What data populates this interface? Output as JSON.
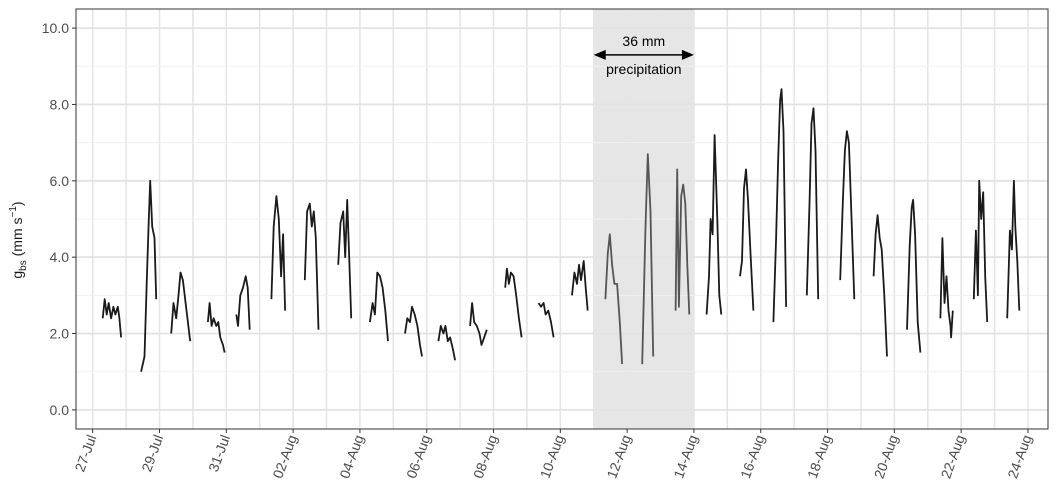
{
  "chart_data": {
    "type": "line",
    "title": "",
    "xlabel": "",
    "ylabel": "g_bs (mm s⁻¹)",
    "ylabel_parts": {
      "symbol": "g",
      "subscript": "bs",
      "unit": "(mm s",
      "exponent": "−1",
      "close": ")"
    },
    "x_unit": "day index from 27-Jul",
    "xlim": [
      -0.5,
      28.6
    ],
    "ylim": [
      -0.5,
      10.5
    ],
    "grid": true,
    "x_ticks": [
      {
        "pos": 0,
        "label": "27-Jul"
      },
      {
        "pos": 2,
        "label": "29-Jul"
      },
      {
        "pos": 4,
        "label": "31-Jul"
      },
      {
        "pos": 6,
        "label": "02-Aug"
      },
      {
        "pos": 8,
        "label": "04-Aug"
      },
      {
        "pos": 10,
        "label": "06-Aug"
      },
      {
        "pos": 12,
        "label": "08-Aug"
      },
      {
        "pos": 14,
        "label": "10-Aug"
      },
      {
        "pos": 16,
        "label": "12-Aug"
      },
      {
        "pos": 18,
        "label": "14-Aug"
      },
      {
        "pos": 20,
        "label": "16-Aug"
      },
      {
        "pos": 22,
        "label": "18-Aug"
      },
      {
        "pos": 24,
        "label": "20-Aug"
      },
      {
        "pos": 26,
        "label": "22-Aug"
      },
      {
        "pos": 28,
        "label": "24-Aug"
      }
    ],
    "y_ticks": [
      {
        "value": 0,
        "label": "0.0"
      },
      {
        "value": 2,
        "label": "2.0"
      },
      {
        "value": 4,
        "label": "4.0"
      },
      {
        "value": 6,
        "label": "6.0"
      },
      {
        "value": 8,
        "label": "8.0"
      },
      {
        "value": 10,
        "label": "10.0"
      }
    ],
    "shaded_region": {
      "x": [
        15.0,
        18.0
      ],
      "color": "#e6e6e6"
    },
    "annotation": {
      "line1": "36 mm",
      "line2": "precipitation",
      "arrow_x": [
        15.0,
        18.0
      ],
      "y": 9.3
    },
    "series": [
      {
        "color": "#1a1a1a",
        "points": [
          [
            0.3,
            2.4
          ],
          [
            0.36,
            2.9
          ],
          [
            0.42,
            2.5
          ],
          [
            0.48,
            2.8
          ],
          [
            0.55,
            2.4
          ],
          [
            0.62,
            2.7
          ],
          [
            0.68,
            2.5
          ],
          [
            0.75,
            2.7
          ],
          [
            0.8,
            2.4
          ],
          [
            0.85,
            1.9
          ]
        ]
      },
      {
        "color": "#1a1a1a",
        "points": [
          [
            1.45,
            1.0
          ],
          [
            1.55,
            1.4
          ],
          [
            1.62,
            3.4
          ],
          [
            1.68,
            5.0
          ],
          [
            1.72,
            6.0
          ],
          [
            1.78,
            4.8
          ],
          [
            1.85,
            4.5
          ],
          [
            1.9,
            2.9
          ]
        ]
      },
      {
        "color": "#1a1a1a",
        "points": [
          [
            2.35,
            2.0
          ],
          [
            2.42,
            2.8
          ],
          [
            2.5,
            2.4
          ],
          [
            2.57,
            3.0
          ],
          [
            2.63,
            3.6
          ],
          [
            2.7,
            3.4
          ],
          [
            2.78,
            2.8
          ],
          [
            2.85,
            2.3
          ],
          [
            2.92,
            1.8
          ]
        ]
      },
      {
        "color": "#1a1a1a",
        "points": [
          [
            3.45,
            2.3
          ],
          [
            3.5,
            2.8
          ],
          [
            3.56,
            2.2
          ],
          [
            3.62,
            2.4
          ],
          [
            3.7,
            2.2
          ],
          [
            3.76,
            2.3
          ],
          [
            3.82,
            1.9
          ],
          [
            3.9,
            1.7
          ],
          [
            3.95,
            1.5
          ]
        ]
      },
      {
        "color": "#1a1a1a",
        "points": [
          [
            4.3,
            2.5
          ],
          [
            4.35,
            2.2
          ],
          [
            4.42,
            3.0
          ],
          [
            4.5,
            3.2
          ],
          [
            4.58,
            3.5
          ],
          [
            4.64,
            3.2
          ],
          [
            4.7,
            2.1
          ]
        ]
      },
      {
        "color": "#1a1a1a",
        "points": [
          [
            5.35,
            2.9
          ],
          [
            5.42,
            4.8
          ],
          [
            5.5,
            5.6
          ],
          [
            5.57,
            5.0
          ],
          [
            5.64,
            3.5
          ],
          [
            5.7,
            4.6
          ],
          [
            5.76,
            2.6
          ]
        ]
      },
      {
        "color": "#1a1a1a",
        "points": [
          [
            6.35,
            3.4
          ],
          [
            6.42,
            5.2
          ],
          [
            6.5,
            5.4
          ],
          [
            6.56,
            4.8
          ],
          [
            6.62,
            5.2
          ],
          [
            6.68,
            4.5
          ],
          [
            6.76,
            2.1
          ]
        ]
      },
      {
        "color": "#1a1a1a",
        "points": [
          [
            7.35,
            3.8
          ],
          [
            7.42,
            4.9
          ],
          [
            7.5,
            5.2
          ],
          [
            7.56,
            4.0
          ],
          [
            7.62,
            5.5
          ],
          [
            7.68,
            4.0
          ],
          [
            7.74,
            2.4
          ]
        ]
      },
      {
        "color": "#1a1a1a",
        "points": [
          [
            8.3,
            2.3
          ],
          [
            8.38,
            2.8
          ],
          [
            8.45,
            2.5
          ],
          [
            8.52,
            3.6
          ],
          [
            8.6,
            3.5
          ],
          [
            8.68,
            3.2
          ],
          [
            8.76,
            2.6
          ],
          [
            8.84,
            1.8
          ]
        ]
      },
      {
        "color": "#1a1a1a",
        "points": [
          [
            9.35,
            2.0
          ],
          [
            9.42,
            2.4
          ],
          [
            9.5,
            2.3
          ],
          [
            9.56,
            2.7
          ],
          [
            9.64,
            2.5
          ],
          [
            9.72,
            2.2
          ],
          [
            9.8,
            1.7
          ],
          [
            9.86,
            1.4
          ]
        ]
      },
      {
        "color": "#1a1a1a",
        "points": [
          [
            10.35,
            1.8
          ],
          [
            10.42,
            2.2
          ],
          [
            10.5,
            2.0
          ],
          [
            10.56,
            2.2
          ],
          [
            10.63,
            1.8
          ],
          [
            10.7,
            1.9
          ],
          [
            10.78,
            1.6
          ],
          [
            10.85,
            1.3
          ]
        ]
      },
      {
        "color": "#1a1a1a",
        "points": [
          [
            11.3,
            2.2
          ],
          [
            11.36,
            2.8
          ],
          [
            11.42,
            2.3
          ],
          [
            11.5,
            2.2
          ],
          [
            11.58,
            2.0
          ],
          [
            11.64,
            1.7
          ],
          [
            11.72,
            1.9
          ],
          [
            11.8,
            2.1
          ]
        ]
      },
      {
        "color": "#1a1a1a",
        "points": [
          [
            12.35,
            3.2
          ],
          [
            12.4,
            3.7
          ],
          [
            12.46,
            3.3
          ],
          [
            12.52,
            3.6
          ],
          [
            12.6,
            3.5
          ],
          [
            12.68,
            3.0
          ],
          [
            12.76,
            2.4
          ],
          [
            12.84,
            1.9
          ]
        ]
      },
      {
        "color": "#1a1a1a",
        "points": [
          [
            13.35,
            2.8
          ],
          [
            13.42,
            2.7
          ],
          [
            13.5,
            2.8
          ],
          [
            13.56,
            2.5
          ],
          [
            13.64,
            2.6
          ],
          [
            13.72,
            2.3
          ],
          [
            13.8,
            1.9
          ]
        ]
      },
      {
        "color": "#1a1a1a",
        "points": [
          [
            14.35,
            3.0
          ],
          [
            14.42,
            3.6
          ],
          [
            14.5,
            3.3
          ],
          [
            14.56,
            3.8
          ],
          [
            14.62,
            3.4
          ],
          [
            14.7,
            3.9
          ],
          [
            14.76,
            3.2
          ],
          [
            14.82,
            2.6
          ]
        ]
      },
      {
        "color": "#555555",
        "points": [
          [
            15.35,
            2.9
          ],
          [
            15.42,
            4.1
          ],
          [
            15.48,
            4.6
          ],
          [
            15.55,
            3.8
          ],
          [
            15.62,
            3.3
          ],
          [
            15.7,
            3.3
          ],
          [
            15.78,
            2.3
          ],
          [
            15.85,
            1.2
          ]
        ]
      },
      {
        "color": "#555555",
        "points": [
          [
            16.45,
            1.2
          ],
          [
            16.55,
            4.8
          ],
          [
            16.62,
            6.7
          ],
          [
            16.7,
            5.2
          ],
          [
            16.78,
            1.4
          ]
        ]
      },
      {
        "color": "#555555",
        "points": [
          [
            17.45,
            2.6
          ],
          [
            17.5,
            6.3
          ],
          [
            17.55,
            2.7
          ],
          [
            17.62,
            5.6
          ],
          [
            17.68,
            5.9
          ],
          [
            17.74,
            5.4
          ],
          [
            17.8,
            3.8
          ],
          [
            17.86,
            2.5
          ]
        ]
      },
      {
        "color": "#1a1a1a",
        "points": [
          [
            18.38,
            2.5
          ],
          [
            18.45,
            3.5
          ],
          [
            18.5,
            5.0
          ],
          [
            18.56,
            4.6
          ],
          [
            18.62,
            7.2
          ],
          [
            18.7,
            5.0
          ],
          [
            18.76,
            3.0
          ],
          [
            18.82,
            2.5
          ]
        ]
      },
      {
        "color": "#1a1a1a",
        "points": [
          [
            19.38,
            3.5
          ],
          [
            19.44,
            3.9
          ],
          [
            19.5,
            5.8
          ],
          [
            19.56,
            6.3
          ],
          [
            19.62,
            5.5
          ],
          [
            19.7,
            4.0
          ],
          [
            19.78,
            2.6
          ]
        ]
      },
      {
        "color": "#1a1a1a",
        "points": [
          [
            20.38,
            2.3
          ],
          [
            20.46,
            4.5
          ],
          [
            20.52,
            6.5
          ],
          [
            20.58,
            8.1
          ],
          [
            20.62,
            8.4
          ],
          [
            20.68,
            7.3
          ],
          [
            20.76,
            2.7
          ]
        ]
      },
      {
        "color": "#1a1a1a",
        "points": [
          [
            21.38,
            3.0
          ],
          [
            21.46,
            5.4
          ],
          [
            21.52,
            7.5
          ],
          [
            21.58,
            7.9
          ],
          [
            21.64,
            6.8
          ],
          [
            21.72,
            2.9
          ]
        ]
      },
      {
        "color": "#1a1a1a",
        "points": [
          [
            22.38,
            3.4
          ],
          [
            22.46,
            5.5
          ],
          [
            22.52,
            6.8
          ],
          [
            22.58,
            7.3
          ],
          [
            22.64,
            7.0
          ],
          [
            22.7,
            5.5
          ],
          [
            22.8,
            2.9
          ]
        ]
      },
      {
        "color": "#1a1a1a",
        "points": [
          [
            23.38,
            3.5
          ],
          [
            23.44,
            4.6
          ],
          [
            23.5,
            5.1
          ],
          [
            23.56,
            4.5
          ],
          [
            23.62,
            4.2
          ],
          [
            23.7,
            3.0
          ],
          [
            23.78,
            1.4
          ]
        ]
      },
      {
        "color": "#1a1a1a",
        "points": [
          [
            24.38,
            2.1
          ],
          [
            24.46,
            4.3
          ],
          [
            24.52,
            5.3
          ],
          [
            24.56,
            5.5
          ],
          [
            24.62,
            4.6
          ],
          [
            24.7,
            2.3
          ],
          [
            24.78,
            1.5
          ]
        ]
      },
      {
        "color": "#1a1a1a",
        "points": [
          [
            25.38,
            2.4
          ],
          [
            25.44,
            4.5
          ],
          [
            25.5,
            2.8
          ],
          [
            25.56,
            3.5
          ],
          [
            25.62,
            2.6
          ],
          [
            25.68,
            2.2
          ],
          [
            25.7,
            1.9
          ],
          [
            25.75,
            2.6
          ]
        ]
      },
      {
        "color": "#1a1a1a",
        "points": [
          [
            26.38,
            2.9
          ],
          [
            26.44,
            4.7
          ],
          [
            26.5,
            3.0
          ],
          [
            26.54,
            6.0
          ],
          [
            26.6,
            5.0
          ],
          [
            26.66,
            5.7
          ],
          [
            26.72,
            3.5
          ],
          [
            26.78,
            2.3
          ]
        ]
      },
      {
        "color": "#1a1a1a",
        "points": [
          [
            27.38,
            2.4
          ],
          [
            27.46,
            4.7
          ],
          [
            27.52,
            4.2
          ],
          [
            27.58,
            6.0
          ],
          [
            27.62,
            4.8
          ],
          [
            27.68,
            3.9
          ],
          [
            27.74,
            2.6
          ]
        ]
      }
    ]
  }
}
